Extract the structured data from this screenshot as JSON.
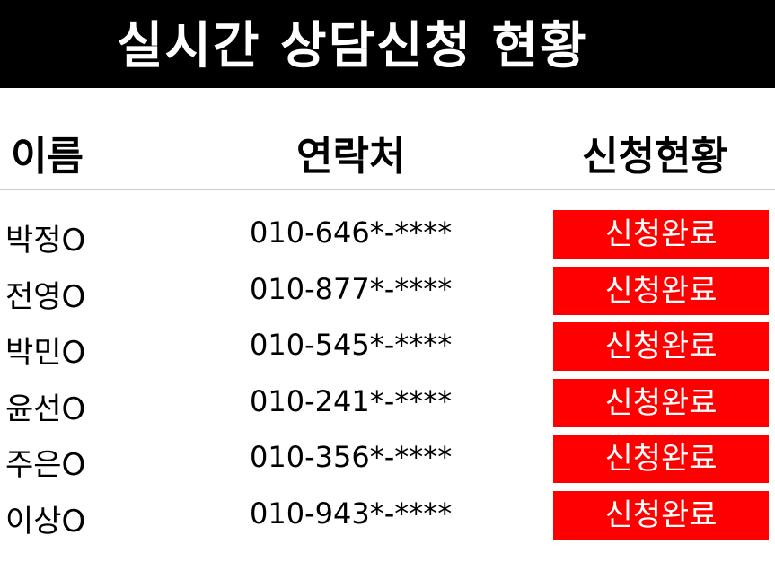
{
  "title": "실시간 상담신청 현황",
  "columns": {
    "name": "이름",
    "phone": "연락처",
    "status": "신청현황"
  },
  "colors": {
    "title_bg": "#000000",
    "badge_bg": "#ff0000",
    "badge_text": "#ffffff"
  },
  "rows": [
    {
      "name": "박정O",
      "phone": "010-646*-****",
      "status": "신청완료"
    },
    {
      "name": "전영O",
      "phone": "010-877*-****",
      "status": "신청완료"
    },
    {
      "name": "박민O",
      "phone": "010-545*-****",
      "status": "신청완료"
    },
    {
      "name": "윤선O",
      "phone": "010-241*-****",
      "status": "신청완료"
    },
    {
      "name": "주은O",
      "phone": "010-356*-****",
      "status": "신청완료"
    },
    {
      "name": "이상O",
      "phone": "010-943*-****",
      "status": "신청완료"
    }
  ]
}
